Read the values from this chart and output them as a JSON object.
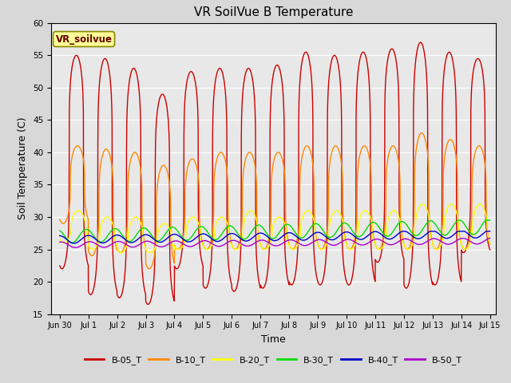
{
  "title": "VR SoilVue B Temperature",
  "xlabel": "Time",
  "ylabel": "Soil Temperature (C)",
  "ylim": [
    15,
    60
  ],
  "yticks": [
    15,
    20,
    25,
    30,
    35,
    40,
    45,
    50,
    55,
    60
  ],
  "background_color": "#d8d8d8",
  "plot_bg_color": "#e8e8e8",
  "legend_label": "VR_soilvue",
  "series_colors": {
    "B-05_T": "#cc0000",
    "B-10_T": "#ff8800",
    "B-20_T": "#ffff00",
    "B-30_T": "#00dd00",
    "B-40_T": "#0000cc",
    "B-50_T": "#aa00cc"
  },
  "xtick_labels": [
    "Jun 30",
    "Jul 1",
    "Jul 2",
    "Jul 3",
    "Jul 4",
    "Jul 5",
    "Jul 6",
    "Jul 7",
    "Jul 8",
    "Jul 9",
    "Jul 10",
    "Jul 11",
    "Jul 12",
    "Jul 13",
    "Jul 14",
    "Jul 15"
  ],
  "xtick_positions": [
    0,
    1,
    2,
    3,
    4,
    5,
    6,
    7,
    8,
    9,
    10,
    11,
    12,
    13,
    14,
    15
  ]
}
